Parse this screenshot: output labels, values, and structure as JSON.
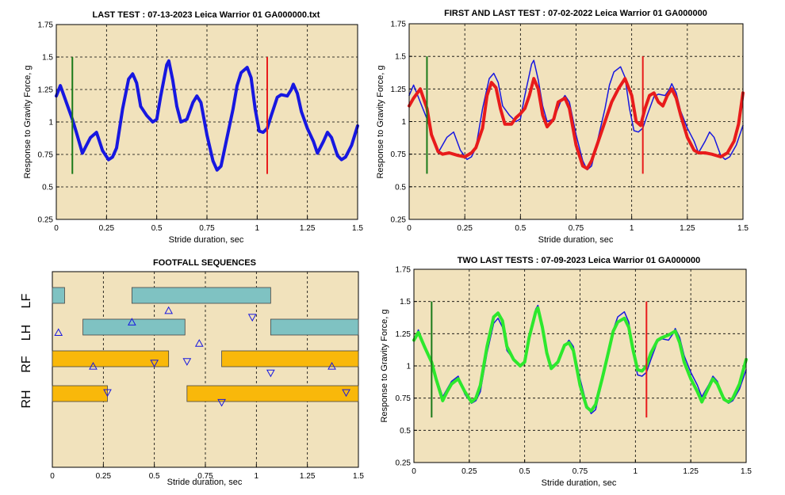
{
  "colors": {
    "plot_bg": "#f1e2bc",
    "last": "#1717e0",
    "first": "#e81b1b",
    "two_last": "#2de82d",
    "green_marker": "#1a7a1a",
    "red_marker": "#e81b1b",
    "teal_bar": "#7fc2c2",
    "gold_bar": "#f9b80a",
    "triangle": "#1717e0"
  },
  "common": {
    "xlabel": "Stride duration, sec",
    "ylabel": "Response to Gravity Force, g",
    "xticks": [
      "0",
      "0.25",
      "0.5",
      "0.75",
      "1",
      "1.25",
      "1.5"
    ],
    "yticks": [
      "0.25",
      "0.5",
      "0.75",
      "1",
      "1.25",
      "1.5",
      "1.75"
    ]
  },
  "chart_data": [
    {
      "id": "last-test",
      "type": "line",
      "title": "LAST TEST : 07-13-2023 Leica Warrior 01 GA000000.txt",
      "xlabel": "Stride duration, sec",
      "ylabel": "Response to Gravity Force, g",
      "xlim": [
        0,
        1.5
      ],
      "ylim": [
        0.25,
        1.75
      ],
      "grid": true,
      "markers": [
        {
          "color": "green",
          "x": 0.08,
          "y": [
            0.6,
            1.5
          ]
        },
        {
          "color": "red",
          "x": 1.05,
          "y": [
            0.6,
            1.5
          ]
        }
      ],
      "series": [
        {
          "color_key": "last",
          "x": [
            0,
            0.02,
            0.05,
            0.08,
            0.1,
            0.13,
            0.15,
            0.17,
            0.2,
            0.23,
            0.26,
            0.28,
            0.3,
            0.33,
            0.36,
            0.38,
            0.4,
            0.42,
            0.45,
            0.48,
            0.5,
            0.52,
            0.55,
            0.56,
            0.58,
            0.6,
            0.62,
            0.65,
            0.68,
            0.7,
            0.72,
            0.75,
            0.78,
            0.8,
            0.82,
            0.85,
            0.88,
            0.9,
            0.92,
            0.95,
            0.97,
            0.99,
            1.01,
            1.03,
            1.05,
            1.07,
            1.1,
            1.12,
            1.15,
            1.17,
            1.18,
            1.2,
            1.22,
            1.25,
            1.28,
            1.3,
            1.33,
            1.35,
            1.37,
            1.4,
            1.42,
            1.44,
            1.47,
            1.5
          ],
          "y": [
            1.2,
            1.28,
            1.15,
            1.02,
            0.92,
            0.76,
            0.82,
            0.88,
            0.92,
            0.78,
            0.71,
            0.73,
            0.8,
            1.1,
            1.33,
            1.37,
            1.3,
            1.12,
            1.05,
            1.0,
            1.02,
            1.2,
            1.44,
            1.47,
            1.32,
            1.12,
            1.0,
            1.02,
            1.15,
            1.2,
            1.15,
            0.9,
            0.7,
            0.63,
            0.66,
            0.88,
            1.1,
            1.28,
            1.38,
            1.42,
            1.34,
            1.1,
            0.93,
            0.92,
            0.95,
            1.05,
            1.19,
            1.21,
            1.2,
            1.25,
            1.29,
            1.22,
            1.08,
            0.95,
            0.85,
            0.76,
            0.85,
            0.92,
            0.88,
            0.74,
            0.71,
            0.73,
            0.82,
            0.97
          ]
        }
      ]
    },
    {
      "id": "first-and-last-test",
      "type": "line",
      "title": "FIRST AND LAST TEST : 07-02-2022 Leica Warrior 01 GA000000",
      "xlabel": "Stride duration, sec",
      "ylabel": "Response to Gravity Force, g",
      "xlim": [
        0,
        1.5
      ],
      "ylim": [
        0.25,
        1.75
      ],
      "grid": true,
      "markers": [
        {
          "color": "green",
          "x": 0.08,
          "y": [
            0.6,
            1.5
          ]
        },
        {
          "color": "red",
          "x": 1.05,
          "y": [
            0.6,
            1.5
          ]
        }
      ],
      "series": [
        {
          "color_key": "last",
          "width": 1.5,
          "x": [
            0,
            0.02,
            0.05,
            0.08,
            0.1,
            0.13,
            0.15,
            0.17,
            0.2,
            0.23,
            0.26,
            0.28,
            0.3,
            0.33,
            0.36,
            0.38,
            0.4,
            0.42,
            0.45,
            0.48,
            0.5,
            0.52,
            0.55,
            0.56,
            0.58,
            0.6,
            0.62,
            0.65,
            0.68,
            0.7,
            0.72,
            0.75,
            0.78,
            0.8,
            0.82,
            0.85,
            0.88,
            0.9,
            0.92,
            0.95,
            0.97,
            0.99,
            1.01,
            1.03,
            1.05,
            1.07,
            1.1,
            1.12,
            1.15,
            1.17,
            1.18,
            1.2,
            1.22,
            1.25,
            1.28,
            1.3,
            1.33,
            1.35,
            1.37,
            1.4,
            1.42,
            1.44,
            1.47,
            1.5
          ],
          "y": [
            1.2,
            1.28,
            1.15,
            1.02,
            0.92,
            0.76,
            0.82,
            0.88,
            0.92,
            0.78,
            0.71,
            0.73,
            0.8,
            1.1,
            1.33,
            1.37,
            1.3,
            1.12,
            1.05,
            1.0,
            1.02,
            1.2,
            1.44,
            1.47,
            1.32,
            1.12,
            1.0,
            1.02,
            1.15,
            1.2,
            1.15,
            0.9,
            0.7,
            0.63,
            0.66,
            0.88,
            1.1,
            1.28,
            1.38,
            1.42,
            1.34,
            1.1,
            0.93,
            0.92,
            0.95,
            1.05,
            1.19,
            1.21,
            1.2,
            1.25,
            1.29,
            1.22,
            1.08,
            0.95,
            0.85,
            0.76,
            0.85,
            0.92,
            0.88,
            0.74,
            0.71,
            0.73,
            0.82,
            0.97
          ]
        },
        {
          "color_key": "first",
          "width": 4,
          "x": [
            0,
            0.02,
            0.05,
            0.08,
            0.1,
            0.13,
            0.15,
            0.18,
            0.22,
            0.25,
            0.28,
            0.3,
            0.33,
            0.35,
            0.37,
            0.39,
            0.41,
            0.43,
            0.46,
            0.48,
            0.5,
            0.52,
            0.54,
            0.56,
            0.58,
            0.6,
            0.62,
            0.65,
            0.67,
            0.7,
            0.72,
            0.75,
            0.78,
            0.8,
            0.82,
            0.85,
            0.88,
            0.91,
            0.94,
            0.97,
            1.0,
            1.02,
            1.04,
            1.06,
            1.08,
            1.1,
            1.12,
            1.14,
            1.16,
            1.18,
            1.2,
            1.22,
            1.25,
            1.28,
            1.3,
            1.33,
            1.36,
            1.4,
            1.43,
            1.46,
            1.48,
            1.5
          ],
          "y": [
            1.12,
            1.18,
            1.25,
            1.1,
            0.9,
            0.77,
            0.75,
            0.76,
            0.74,
            0.73,
            0.76,
            0.8,
            0.95,
            1.2,
            1.3,
            1.26,
            1.1,
            0.98,
            0.98,
            1.03,
            1.06,
            1.1,
            1.2,
            1.33,
            1.25,
            1.05,
            0.96,
            1.02,
            1.15,
            1.18,
            1.1,
            0.82,
            0.66,
            0.64,
            0.7,
            0.85,
            1.0,
            1.15,
            1.25,
            1.33,
            1.2,
            1.0,
            0.97,
            1.1,
            1.2,
            1.22,
            1.15,
            1.12,
            1.2,
            1.25,
            1.18,
            1.05,
            0.88,
            0.78,
            0.76,
            0.76,
            0.75,
            0.73,
            0.76,
            0.85,
            0.98,
            1.22
          ]
        }
      ]
    },
    {
      "id": "footfall-sequences",
      "type": "gantt",
      "title": "FOOTFALL SEQUENCES",
      "xlabel": "Stride duration, sec",
      "xlim": [
        0,
        1.5
      ],
      "rows": [
        "LF",
        "LH",
        "RF",
        "RH"
      ],
      "bars": [
        {
          "row": "LF",
          "start": 0.0,
          "end": 0.06,
          "color_key": "teal_bar"
        },
        {
          "row": "LF",
          "start": 0.39,
          "end": 1.07,
          "color_key": "teal_bar"
        },
        {
          "row": "LH",
          "start": 0.15,
          "end": 0.65,
          "color_key": "teal_bar"
        },
        {
          "row": "LH",
          "start": 1.07,
          "end": 1.5,
          "color_key": "teal_bar"
        },
        {
          "row": "RF",
          "start": 0.0,
          "end": 0.57,
          "color_key": "gold_bar"
        },
        {
          "row": "RF",
          "start": 0.83,
          "end": 1.5,
          "color_key": "gold_bar"
        },
        {
          "row": "RH",
          "start": 0.0,
          "end": 0.27,
          "color_key": "gold_bar"
        },
        {
          "row": "RH",
          "start": 0.66,
          "end": 1.5,
          "color_key": "gold_bar"
        }
      ],
      "triangles": [
        {
          "x": 0.03,
          "level": 1.62,
          "dir": "up"
        },
        {
          "x": 0.2,
          "level": 2.65,
          "dir": "up"
        },
        {
          "x": 0.27,
          "level": 3.45,
          "dir": "down"
        },
        {
          "x": 0.39,
          "level": 1.3,
          "dir": "up"
        },
        {
          "x": 0.5,
          "level": 2.55,
          "dir": "down"
        },
        {
          "x": 0.57,
          "level": 0.95,
          "dir": "up"
        },
        {
          "x": 0.66,
          "level": 2.5,
          "dir": "down"
        },
        {
          "x": 0.72,
          "level": 1.95,
          "dir": "up"
        },
        {
          "x": 0.83,
          "level": 3.75,
          "dir": "down"
        },
        {
          "x": 0.98,
          "level": 1.15,
          "dir": "down"
        },
        {
          "x": 1.07,
          "level": 2.85,
          "dir": "down"
        },
        {
          "x": 1.37,
          "level": 2.65,
          "dir": "up"
        },
        {
          "x": 1.44,
          "level": 3.45,
          "dir": "down"
        }
      ]
    },
    {
      "id": "two-last-tests",
      "type": "line",
      "title": "TWO LAST TESTS : 07-09-2023 Leica Warrior 01 GA000000",
      "xlabel": "Stride duration, sec",
      "ylabel": "Response to Gravity Force, g",
      "xlim": [
        0,
        1.5
      ],
      "ylim": [
        0.25,
        1.75
      ],
      "grid": true,
      "markers": [
        {
          "color": "green",
          "x": 0.08,
          "y": [
            0.6,
            1.5
          ]
        },
        {
          "color": "red",
          "x": 1.05,
          "y": [
            0.6,
            1.5
          ]
        }
      ],
      "series": [
        {
          "color_key": "last",
          "width": 1.5,
          "x": [
            0,
            0.02,
            0.05,
            0.08,
            0.1,
            0.13,
            0.15,
            0.17,
            0.2,
            0.23,
            0.26,
            0.28,
            0.3,
            0.33,
            0.36,
            0.38,
            0.4,
            0.42,
            0.45,
            0.48,
            0.5,
            0.52,
            0.55,
            0.56,
            0.58,
            0.6,
            0.62,
            0.65,
            0.68,
            0.7,
            0.72,
            0.75,
            0.78,
            0.8,
            0.82,
            0.85,
            0.88,
            0.9,
            0.92,
            0.95,
            0.97,
            0.99,
            1.01,
            1.03,
            1.05,
            1.07,
            1.1,
            1.12,
            1.15,
            1.17,
            1.18,
            1.2,
            1.22,
            1.25,
            1.28,
            1.3,
            1.33,
            1.35,
            1.37,
            1.4,
            1.42,
            1.44,
            1.47,
            1.5
          ],
          "y": [
            1.2,
            1.28,
            1.15,
            1.02,
            0.92,
            0.76,
            0.82,
            0.88,
            0.92,
            0.78,
            0.71,
            0.73,
            0.8,
            1.1,
            1.33,
            1.37,
            1.3,
            1.12,
            1.05,
            1.0,
            1.02,
            1.2,
            1.44,
            1.47,
            1.32,
            1.12,
            1.0,
            1.02,
            1.15,
            1.2,
            1.15,
            0.9,
            0.7,
            0.63,
            0.66,
            0.88,
            1.1,
            1.28,
            1.38,
            1.42,
            1.34,
            1.1,
            0.93,
            0.92,
            0.95,
            1.05,
            1.19,
            1.21,
            1.2,
            1.25,
            1.29,
            1.22,
            1.08,
            0.95,
            0.85,
            0.76,
            0.85,
            0.92,
            0.88,
            0.74,
            0.71,
            0.73,
            0.82,
            0.97
          ]
        },
        {
          "color_key": "two_last",
          "width": 4,
          "x": [
            0,
            0.02,
            0.05,
            0.08,
            0.1,
            0.13,
            0.15,
            0.17,
            0.2,
            0.23,
            0.26,
            0.28,
            0.3,
            0.33,
            0.36,
            0.38,
            0.4,
            0.42,
            0.45,
            0.48,
            0.5,
            0.52,
            0.55,
            0.56,
            0.58,
            0.6,
            0.62,
            0.65,
            0.68,
            0.7,
            0.72,
            0.75,
            0.78,
            0.8,
            0.82,
            0.85,
            0.88,
            0.9,
            0.92,
            0.95,
            0.97,
            0.99,
            1.01,
            1.03,
            1.05,
            1.07,
            1.1,
            1.12,
            1.15,
            1.17,
            1.18,
            1.2,
            1.22,
            1.25,
            1.28,
            1.3,
            1.33,
            1.35,
            1.37,
            1.4,
            1.42,
            1.44,
            1.47,
            1.5
          ],
          "y": [
            1.2,
            1.26,
            1.14,
            1.03,
            0.9,
            0.73,
            0.8,
            0.86,
            0.9,
            0.8,
            0.72,
            0.75,
            0.85,
            1.15,
            1.38,
            1.41,
            1.35,
            1.15,
            1.05,
            1.0,
            1.03,
            1.22,
            1.42,
            1.45,
            1.3,
            1.1,
            0.98,
            1.03,
            1.16,
            1.18,
            1.12,
            0.85,
            0.68,
            0.65,
            0.7,
            0.9,
            1.12,
            1.27,
            1.34,
            1.37,
            1.3,
            1.12,
            0.97,
            0.96,
            1.0,
            1.1,
            1.2,
            1.22,
            1.24,
            1.26,
            1.27,
            1.18,
            1.03,
            0.9,
            0.8,
            0.72,
            0.83,
            0.9,
            0.86,
            0.74,
            0.72,
            0.75,
            0.86,
            1.05
          ]
        }
      ]
    }
  ]
}
